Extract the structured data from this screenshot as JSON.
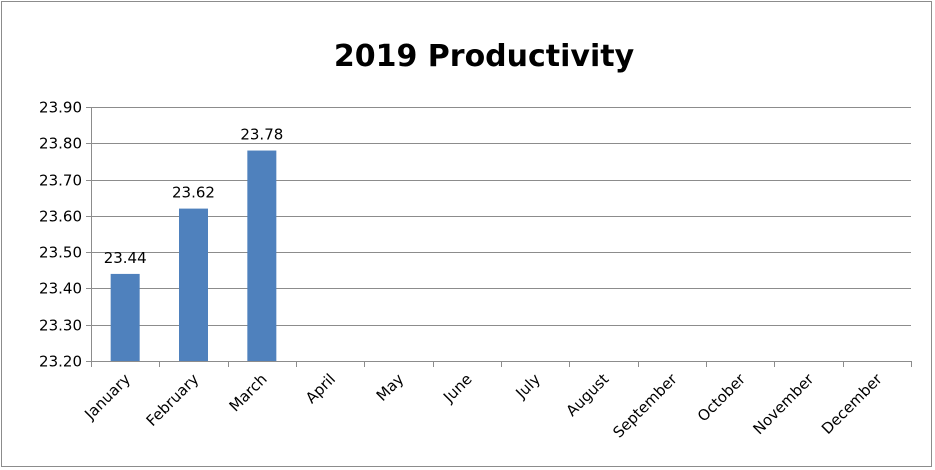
{
  "chart_data": {
    "type": "bar",
    "title": "2019 Productivity",
    "xlabel": "",
    "ylabel": "",
    "categories": [
      "January",
      "February",
      "March",
      "April",
      "May",
      "June",
      "July",
      "August",
      "September",
      "October",
      "November",
      "December"
    ],
    "series": [
      {
        "values": [
          23.44,
          23.62,
          23.78,
          null,
          null,
          null,
          null,
          null,
          null,
          null,
          null,
          null
        ]
      }
    ],
    "data_labels": [
      "23.44",
      "23.62",
      "23.78"
    ],
    "ylim": [
      23.2,
      23.9
    ],
    "yticks": [
      "23.20",
      "23.30",
      "23.40",
      "23.50",
      "23.60",
      "23.70",
      "23.80",
      "23.90"
    ],
    "grid": true,
    "legend": "none",
    "colors": {
      "bar": "#4f81bd",
      "grid": "#8c8c8c",
      "axis": "#8c8c8c",
      "border": "#8c8c8c"
    }
  }
}
